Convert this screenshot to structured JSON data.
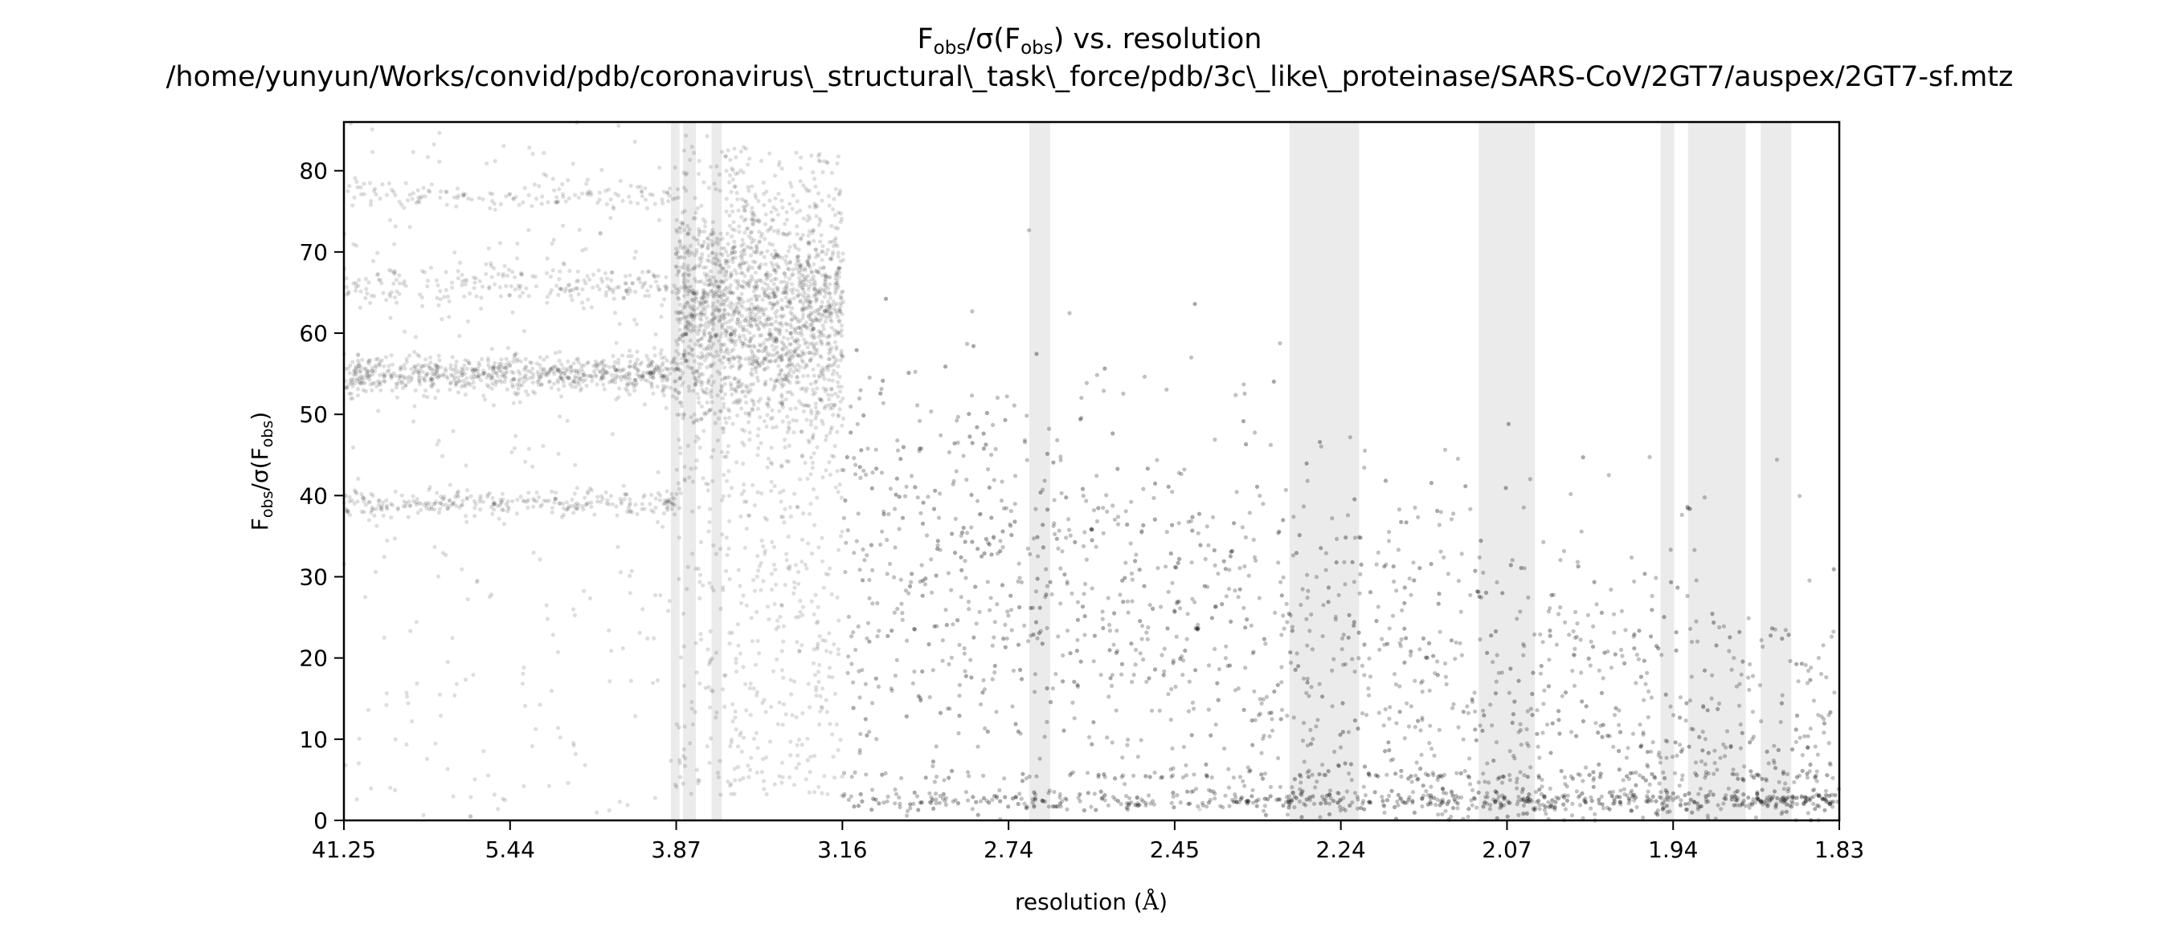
{
  "chart_data": {
    "type": "scatter",
    "title": "F_obs/σ(F_obs) vs. resolution",
    "subtitle": "/home/yunyun/Works/convid/pdb/coronavirus\\_structural\\_task\\_force/pdb/3c\\_like\\_proteinase/SARS-CoV/2GT7/auspex/2GT7-sf.mtz",
    "xlabel": "resolution (Å)",
    "ylabel": "F_obs/σ(F_obs)",
    "x_tick_labels": [
      "41.25",
      "5.44",
      "3.87",
      "3.16",
      "2.74",
      "2.45",
      "2.24",
      "2.07",
      "1.94",
      "1.83"
    ],
    "x_scale": "1/d²",
    "xlim": [
      41.25,
      1.83
    ],
    "ylim": [
      0,
      86
    ],
    "y_ticks": [
      0,
      10,
      20,
      30,
      40,
      50,
      60,
      70,
      80
    ],
    "grid": false,
    "point_color": "#000000",
    "band_color": "#ebebeb",
    "ice_ring_bands": [
      [
        3.9,
        3.85
      ],
      [
        3.83,
        3.76
      ],
      [
        3.68,
        3.63
      ],
      [
        2.7,
        2.66
      ],
      [
        2.3,
        2.22
      ],
      [
        2.1,
        2.05
      ],
      [
        1.95,
        1.94
      ],
      [
        1.93,
        1.89
      ],
      [
        1.88,
        1.86
      ]
    ],
    "series": [
      {
        "x_range": [
          41.25,
          3.87
        ],
        "clusters": [
          [
            55,
            1.2
          ],
          [
            39,
            0.8
          ],
          [
            66,
            1.2
          ],
          [
            77,
            0.8
          ]
        ],
        "spread_range": [
          0,
          86
        ]
      },
      {
        "x_range": [
          3.87,
          3.16
        ],
        "clusters": [
          [
            62,
            7
          ]
        ],
        "spread_range": [
          0,
          86
        ]
      },
      {
        "x_range": [
          3.16,
          1.83
        ],
        "trend_start": [
          3.16,
          48
        ],
        "trend_end": [
          1.83,
          6
        ],
        "baseline_clusters": [
          [
            2.5,
            0.6
          ],
          [
            5.5,
            0.3
          ]
        ]
      }
    ]
  }
}
